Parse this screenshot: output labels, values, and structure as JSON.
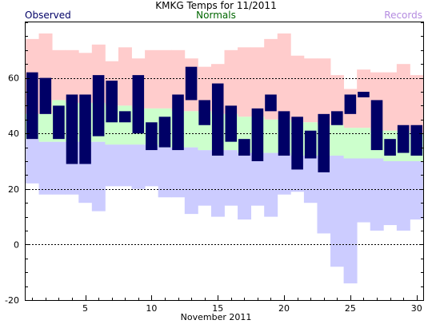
{
  "chart_data": {
    "type": "bar",
    "title": "KMKG Temps for 11/2011",
    "xlabel": "November 2011",
    "ylabel": "",
    "legend": [
      "Observed",
      "Normals",
      "Records"
    ],
    "legend_placement": "top",
    "ylim": [
      -20,
      80
    ],
    "xlim": [
      0.5,
      30.5
    ],
    "y_ticks": [
      -20,
      0,
      20,
      40,
      60
    ],
    "dashed_gridlines": [
      0,
      20,
      40,
      60
    ],
    "x_ticks": [
      5,
      10,
      15,
      20,
      25,
      30
    ],
    "colors": {
      "observed": "#000066",
      "normals": "#ccffcc",
      "record_high": "#ffcccc",
      "record_low": "#ccccff"
    },
    "days": [
      1,
      2,
      3,
      4,
      5,
      6,
      7,
      8,
      9,
      10,
      11,
      12,
      13,
      14,
      15,
      16,
      17,
      18,
      19,
      20,
      21,
      22,
      23,
      24,
      25,
      26,
      27,
      28,
      29,
      30
    ],
    "observed_high": [
      62,
      60,
      50,
      54,
      54,
      61,
      59,
      48,
      61,
      44,
      46,
      54,
      64,
      52,
      58,
      50,
      38,
      49,
      54,
      48,
      46,
      41,
      47,
      48,
      54,
      55,
      52,
      38,
      43,
      43
    ],
    "observed_low": [
      38,
      47,
      38,
      29,
      29,
      39,
      44,
      44,
      40,
      34,
      35,
      34,
      52,
      43,
      32,
      37,
      32,
      30,
      48,
      32,
      27,
      31,
      26,
      43,
      47,
      53,
      34,
      32,
      33,
      32
    ],
    "normal_high": [
      47,
      47,
      52,
      51,
      51,
      51,
      50,
      50,
      49,
      49,
      49,
      48,
      48,
      48,
      47,
      47,
      46,
      46,
      45,
      45,
      44,
      44,
      43,
      43,
      42,
      42,
      41,
      41,
      41,
      40
    ],
    "normal_low": [
      38,
      37,
      37,
      37,
      37,
      37,
      36,
      36,
      36,
      36,
      35,
      35,
      35,
      34,
      34,
      34,
      33,
      33,
      33,
      33,
      32,
      32,
      32,
      32,
      31,
      31,
      31,
      30,
      30,
      30
    ],
    "record_high": [
      74,
      76,
      70,
      70,
      69,
      72,
      66,
      71,
      67,
      70,
      70,
      70,
      67,
      64,
      65,
      70,
      71,
      71,
      74,
      76,
      68,
      67,
      67,
      61,
      56,
      63,
      62,
      62,
      65,
      61
    ],
    "record_low": [
      22,
      18,
      18,
      18,
      15,
      12,
      21,
      21,
      20,
      21,
      17,
      17,
      11,
      14,
      10,
      14,
      9,
      14,
      10,
      18,
      19,
      15,
      4,
      -8,
      -14,
      8,
      5,
      7,
      5,
      9
    ]
  }
}
